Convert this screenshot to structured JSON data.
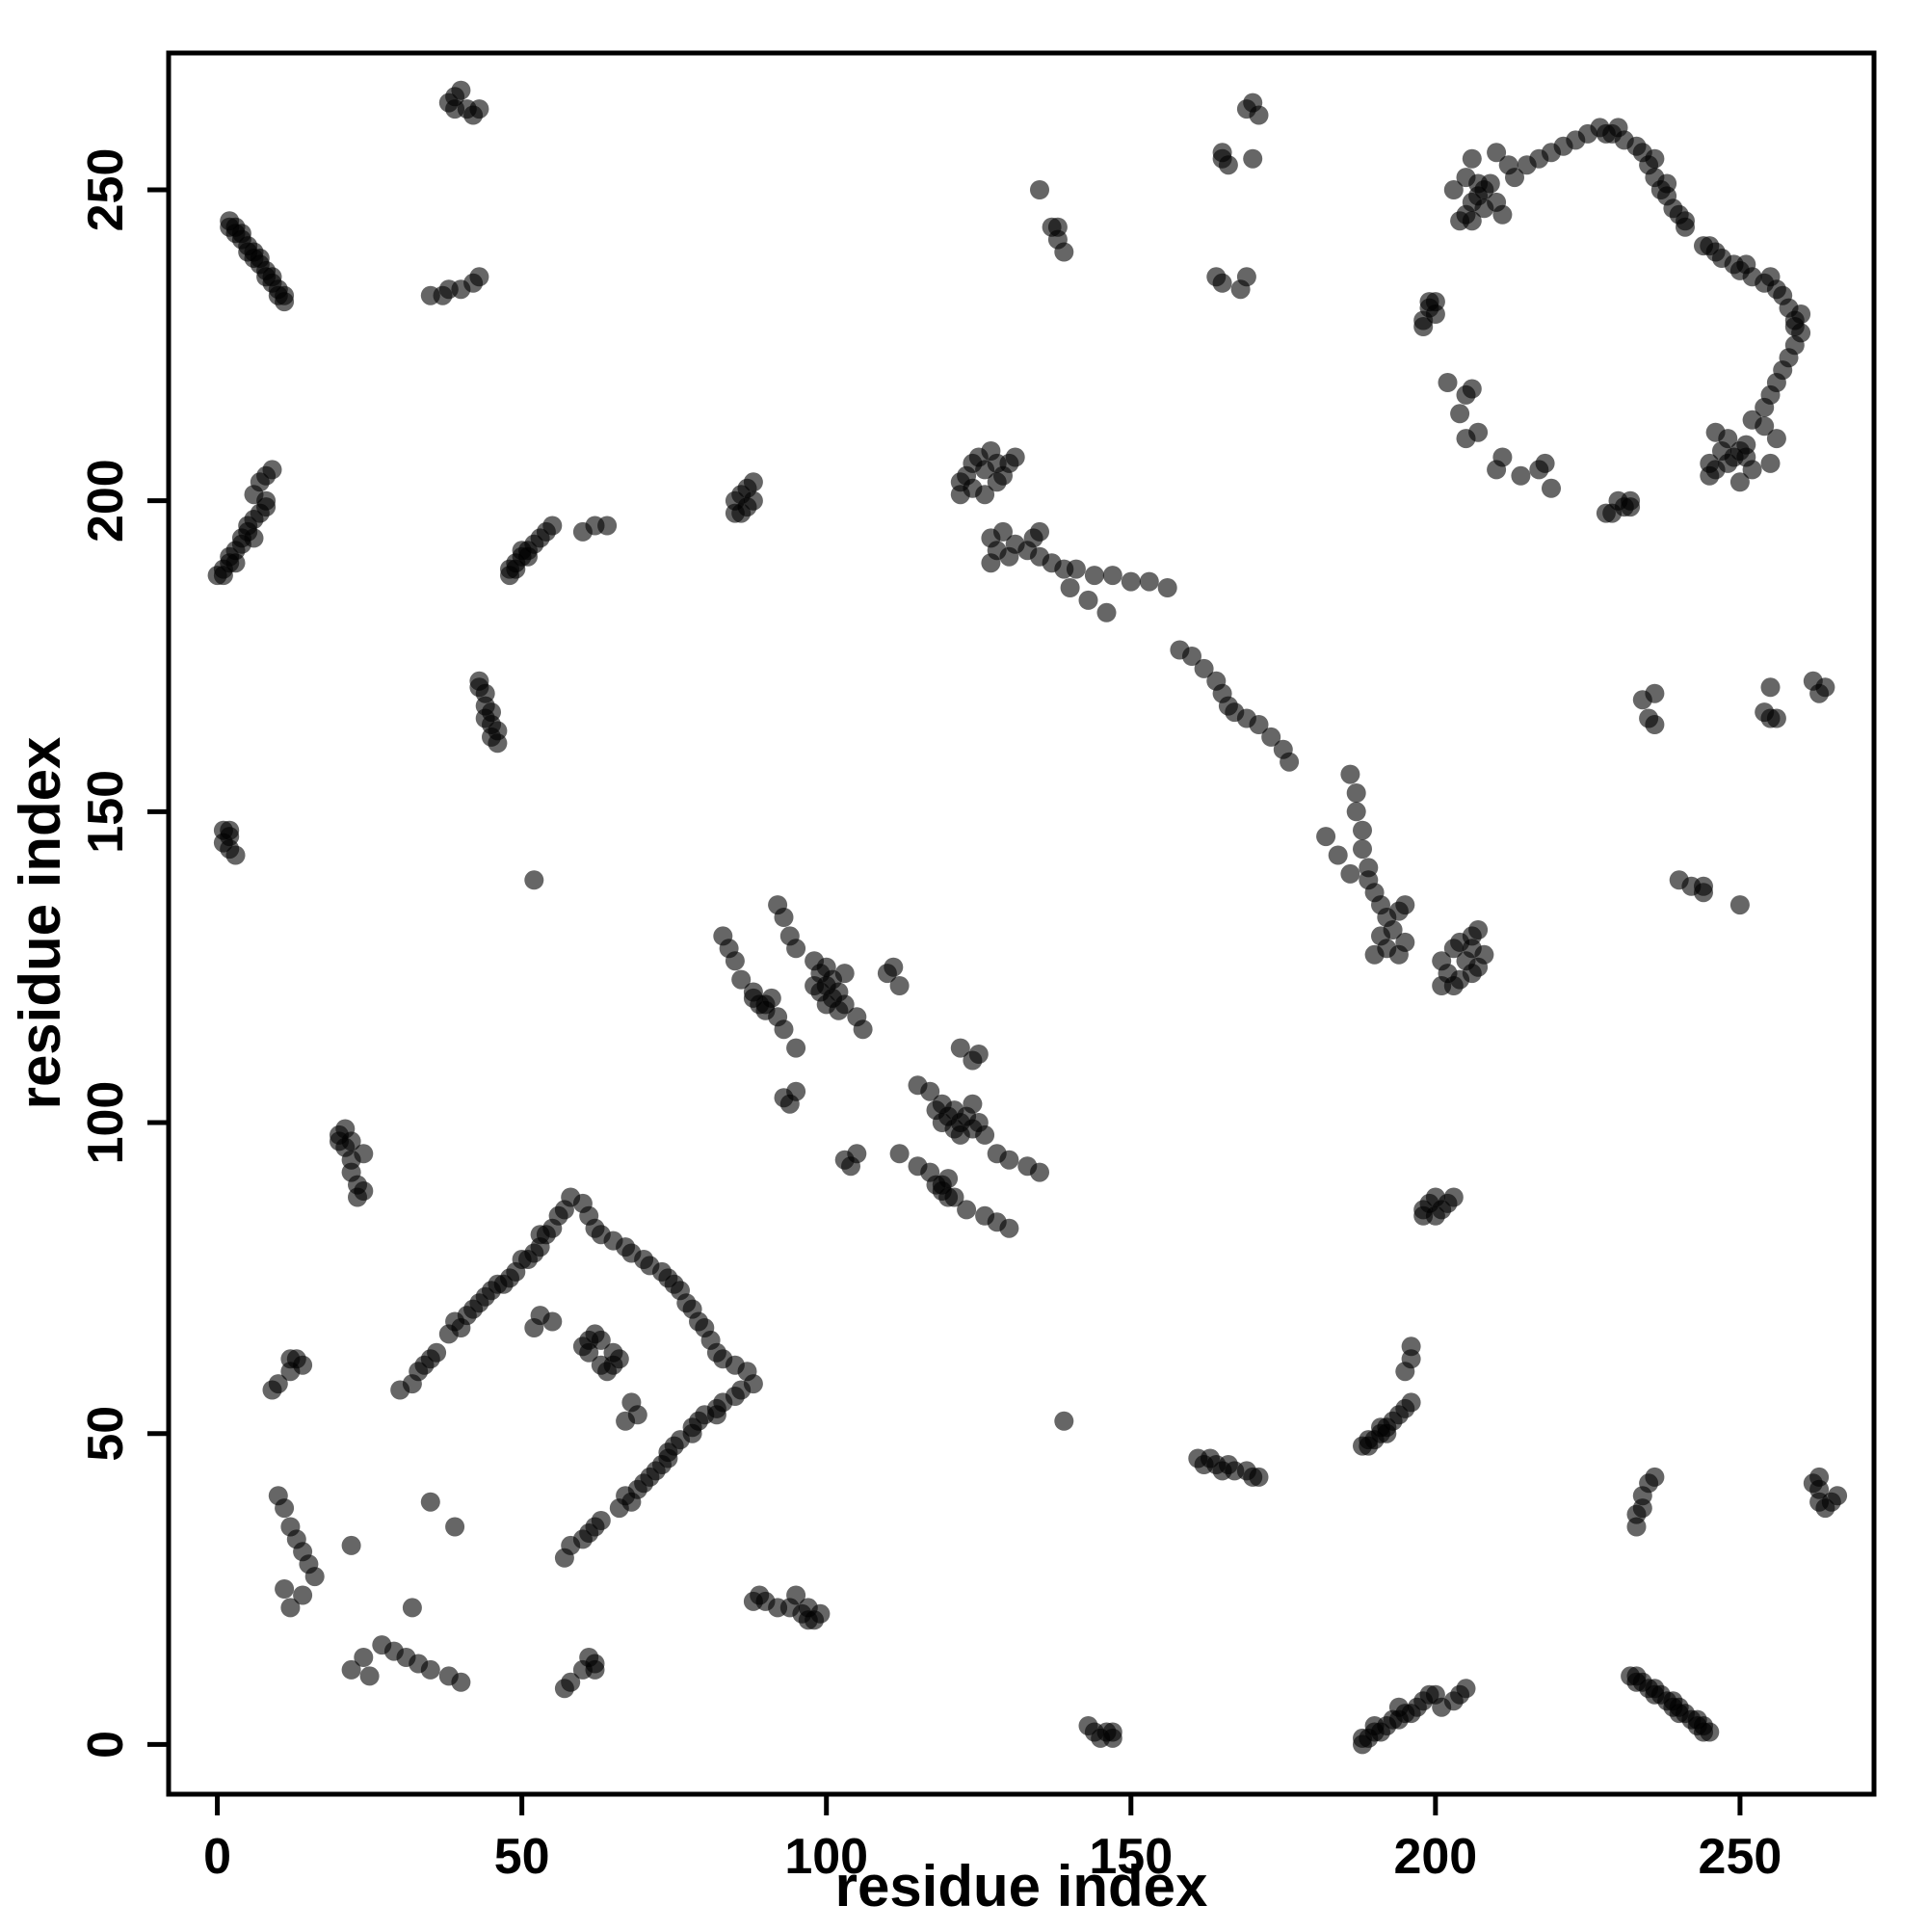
{
  "chart_data": {
    "type": "scatter",
    "xlabel": "residue index",
    "ylabel": "residue index",
    "xlim": [
      -8,
      272
    ],
    "ylim": [
      -8,
      272
    ],
    "xticks": [
      0,
      50,
      100,
      150,
      200,
      250
    ],
    "yticks": [
      0,
      50,
      100,
      150,
      200,
      250
    ],
    "grid": false,
    "legend": "none",
    "symmetric_mirror": true,
    "marker": {
      "shape": "circle",
      "color": "#000000",
      "opacity": 0.6,
      "radius_px": 10
    },
    "pairs": [
      [
        2,
        245
      ],
      [
        2,
        244
      ],
      [
        3,
        244
      ],
      [
        3,
        243
      ],
      [
        4,
        243
      ],
      [
        4,
        242
      ],
      [
        5,
        241
      ],
      [
        5,
        240
      ],
      [
        6,
        240
      ],
      [
        6,
        239
      ],
      [
        7,
        239
      ],
      [
        7,
        238
      ],
      [
        8,
        237
      ],
      [
        8,
        236
      ],
      [
        9,
        236
      ],
      [
        9,
        235
      ],
      [
        10,
        234
      ],
      [
        10,
        233
      ],
      [
        11,
        233
      ],
      [
        11,
        232
      ],
      [
        38,
        264
      ],
      [
        39,
        265
      ],
      [
        39,
        263
      ],
      [
        40,
        266
      ],
      [
        41,
        263
      ],
      [
        42,
        262
      ],
      [
        43,
        263
      ],
      [
        35,
        233
      ],
      [
        37,
        233
      ],
      [
        38,
        234
      ],
      [
        40,
        234
      ],
      [
        42,
        235
      ],
      [
        43,
        236
      ],
      [
        0,
        188
      ],
      [
        1,
        188
      ],
      [
        1,
        189
      ],
      [
        2,
        190
      ],
      [
        2,
        191
      ],
      [
        3,
        190
      ],
      [
        3,
        192
      ],
      [
        4,
        193
      ],
      [
        4,
        194
      ],
      [
        5,
        195
      ],
      [
        5,
        196
      ],
      [
        6,
        194
      ],
      [
        6,
        197
      ],
      [
        7,
        198
      ],
      [
        8,
        199
      ],
      [
        8,
        200
      ],
      [
        6,
        201
      ],
      [
        7,
        203
      ],
      [
        8,
        204
      ],
      [
        9,
        205
      ],
      [
        48,
        188
      ],
      [
        48,
        189
      ],
      [
        49,
        189
      ],
      [
        49,
        190
      ],
      [
        50,
        191
      ],
      [
        50,
        192
      ],
      [
        51,
        191
      ],
      [
        51,
        192
      ],
      [
        52,
        193
      ],
      [
        53,
        194
      ],
      [
        54,
        195
      ],
      [
        55,
        196
      ],
      [
        60,
        195
      ],
      [
        62,
        196
      ],
      [
        64,
        196
      ],
      [
        85,
        198
      ],
      [
        85,
        200
      ],
      [
        86,
        198
      ],
      [
        86,
        201
      ],
      [
        87,
        199
      ],
      [
        87,
        202
      ],
      [
        88,
        200
      ],
      [
        88,
        203
      ],
      [
        43,
        170
      ],
      [
        43,
        171
      ],
      [
        44,
        165
      ],
      [
        44,
        167
      ],
      [
        44,
        169
      ],
      [
        45,
        162
      ],
      [
        45,
        164
      ],
      [
        45,
        166
      ],
      [
        46,
        161
      ],
      [
        46,
        163
      ],
      [
        1,
        145
      ],
      [
        1,
        147
      ],
      [
        2,
        144
      ],
      [
        2,
        146
      ],
      [
        2,
        147
      ],
      [
        3,
        143
      ],
      [
        52,
        139
      ],
      [
        122,
        201
      ],
      [
        122,
        203
      ],
      [
        123,
        204
      ],
      [
        124,
        202
      ],
      [
        124,
        206
      ],
      [
        125,
        207
      ],
      [
        126,
        201
      ],
      [
        126,
        205
      ],
      [
        127,
        208
      ],
      [
        128,
        203
      ],
      [
        128,
        206
      ],
      [
        129,
        204
      ],
      [
        130,
        206
      ],
      [
        131,
        207
      ],
      [
        133,
        192
      ],
      [
        135,
        191
      ],
      [
        137,
        190
      ],
      [
        139,
        189
      ],
      [
        141,
        189
      ],
      [
        144,
        188
      ],
      [
        147,
        188
      ],
      [
        150,
        187
      ],
      [
        153,
        187
      ],
      [
        156,
        186
      ],
      [
        158,
        176
      ],
      [
        160,
        175
      ],
      [
        162,
        173
      ],
      [
        164,
        171
      ],
      [
        165,
        169
      ],
      [
        166,
        167
      ],
      [
        140,
        186
      ],
      [
        143,
        184
      ],
      [
        146,
        182
      ],
      [
        127,
        190
      ],
      [
        127,
        194
      ],
      [
        128,
        192
      ],
      [
        129,
        195
      ],
      [
        130,
        191
      ],
      [
        131,
        193
      ],
      [
        134,
        194
      ],
      [
        135,
        195
      ],
      [
        135,
        250
      ],
      [
        137,
        244
      ],
      [
        138,
        242
      ],
      [
        138,
        244
      ],
      [
        139,
        240
      ],
      [
        165,
        255
      ],
      [
        165,
        256
      ],
      [
        166,
        254
      ],
      [
        170,
        255
      ],
      [
        169,
        263
      ],
      [
        170,
        264
      ],
      [
        171,
        262
      ],
      [
        164,
        236
      ],
      [
        165,
        235
      ],
      [
        168,
        234
      ],
      [
        169,
        236
      ],
      [
        204,
        245
      ],
      [
        205,
        246
      ],
      [
        206,
        245
      ],
      [
        206,
        248
      ],
      [
        207,
        249
      ],
      [
        208,
        247
      ],
      [
        208,
        250
      ],
      [
        209,
        251
      ],
      [
        210,
        248
      ],
      [
        211,
        246
      ],
      [
        213,
        252
      ],
      [
        215,
        254
      ],
      [
        217,
        255
      ],
      [
        219,
        256
      ],
      [
        221,
        257
      ],
      [
        223,
        258
      ],
      [
        225,
        259
      ],
      [
        227,
        260
      ],
      [
        228,
        259
      ],
      [
        229,
        259
      ],
      [
        230,
        260
      ],
      [
        231,
        258
      ],
      [
        233,
        257
      ],
      [
        234,
        256
      ],
      [
        235,
        254
      ],
      [
        236,
        252
      ],
      [
        236,
        255
      ],
      [
        237,
        250
      ],
      [
        238,
        249
      ],
      [
        238,
        251
      ],
      [
        239,
        247
      ],
      [
        240,
        246
      ],
      [
        241,
        244
      ],
      [
        241,
        245
      ],
      [
        198,
        228
      ],
      [
        198,
        229
      ],
      [
        199,
        231
      ],
      [
        199,
        232
      ],
      [
        200,
        230
      ],
      [
        200,
        232
      ],
      [
        204,
        214
      ],
      [
        205,
        217
      ],
      [
        206,
        218
      ],
      [
        205,
        210
      ],
      [
        207,
        211
      ],
      [
        202,
        219
      ],
      [
        206,
        255
      ],
      [
        210,
        256
      ],
      [
        212,
        254
      ],
      [
        203,
        250
      ],
      [
        205,
        252
      ],
      [
        207,
        251
      ],
      [
        30,
        57
      ],
      [
        32,
        58
      ],
      [
        33,
        60
      ],
      [
        34,
        61
      ],
      [
        35,
        62
      ],
      [
        36,
        63
      ],
      [
        38,
        66
      ],
      [
        39,
        68
      ],
      [
        40,
        67
      ],
      [
        41,
        69
      ],
      [
        42,
        70
      ],
      [
        43,
        71
      ],
      [
        44,
        72
      ],
      [
        45,
        73
      ],
      [
        46,
        74
      ],
      [
        47,
        74
      ],
      [
        48,
        75
      ],
      [
        49,
        76
      ],
      [
        50,
        78
      ],
      [
        51,
        78
      ],
      [
        52,
        79
      ],
      [
        53,
        80
      ],
      [
        53,
        82
      ],
      [
        54,
        82
      ],
      [
        55,
        83
      ],
      [
        56,
        85
      ],
      [
        57,
        86
      ],
      [
        58,
        88
      ],
      [
        60,
        87
      ],
      [
        61,
        85
      ],
      [
        62,
        83
      ],
      [
        63,
        82
      ],
      [
        65,
        81
      ],
      [
        67,
        80
      ],
      [
        68,
        79
      ],
      [
        70,
        78
      ],
      [
        71,
        77
      ],
      [
        73,
        76
      ],
      [
        74,
        75
      ],
      [
        60,
        64
      ],
      [
        61,
        63
      ],
      [
        61,
        65
      ],
      [
        62,
        66
      ],
      [
        63,
        65
      ],
      [
        52,
        67
      ],
      [
        53,
        69
      ],
      [
        55,
        68
      ],
      [
        9,
        57
      ],
      [
        10,
        58
      ],
      [
        12,
        60
      ],
      [
        12,
        62
      ],
      [
        13,
        62
      ],
      [
        14,
        61
      ],
      [
        10,
        40
      ],
      [
        11,
        38
      ],
      [
        12,
        35
      ],
      [
        13,
        33
      ],
      [
        14,
        31
      ],
      [
        15,
        29
      ],
      [
        16,
        27
      ],
      [
        14,
        24
      ],
      [
        12,
        22
      ],
      [
        11,
        25
      ],
      [
        22,
        32
      ],
      [
        35,
        39
      ],
      [
        20,
        97
      ],
      [
        20,
        98
      ],
      [
        21,
        96
      ],
      [
        21,
        99
      ],
      [
        22,
        92
      ],
      [
        22,
        94
      ],
      [
        22,
        97
      ],
      [
        23,
        88
      ],
      [
        23,
        90
      ],
      [
        24,
        89
      ],
      [
        24,
        95
      ],
      [
        92,
        135
      ],
      [
        93,
        133
      ],
      [
        94,
        130
      ],
      [
        95,
        128
      ],
      [
        98,
        122
      ],
      [
        98,
        126
      ],
      [
        99,
        121
      ],
      [
        99,
        124
      ],
      [
        100,
        119
      ],
      [
        100,
        122
      ],
      [
        100,
        125
      ],
      [
        101,
        120
      ],
      [
        101,
        123
      ],
      [
        102,
        118
      ],
      [
        102,
        121
      ],
      [
        103,
        119
      ],
      [
        103,
        124
      ],
      [
        105,
        117
      ],
      [
        106,
        115
      ],
      [
        110,
        124
      ],
      [
        111,
        125
      ],
      [
        112,
        122
      ],
      [
        95,
        112
      ],
      [
        93,
        115
      ],
      [
        92,
        117
      ],
      [
        90,
        119
      ],
      [
        88,
        121
      ],
      [
        86,
        123
      ],
      [
        85,
        126
      ],
      [
        84,
        128
      ],
      [
        83,
        130
      ],
      [
        88,
        120
      ],
      [
        89,
        119
      ],
      [
        90,
        118
      ],
      [
        91,
        120
      ],
      [
        93,
        104
      ],
      [
        94,
        103
      ],
      [
        95,
        105
      ]
    ]
  }
}
